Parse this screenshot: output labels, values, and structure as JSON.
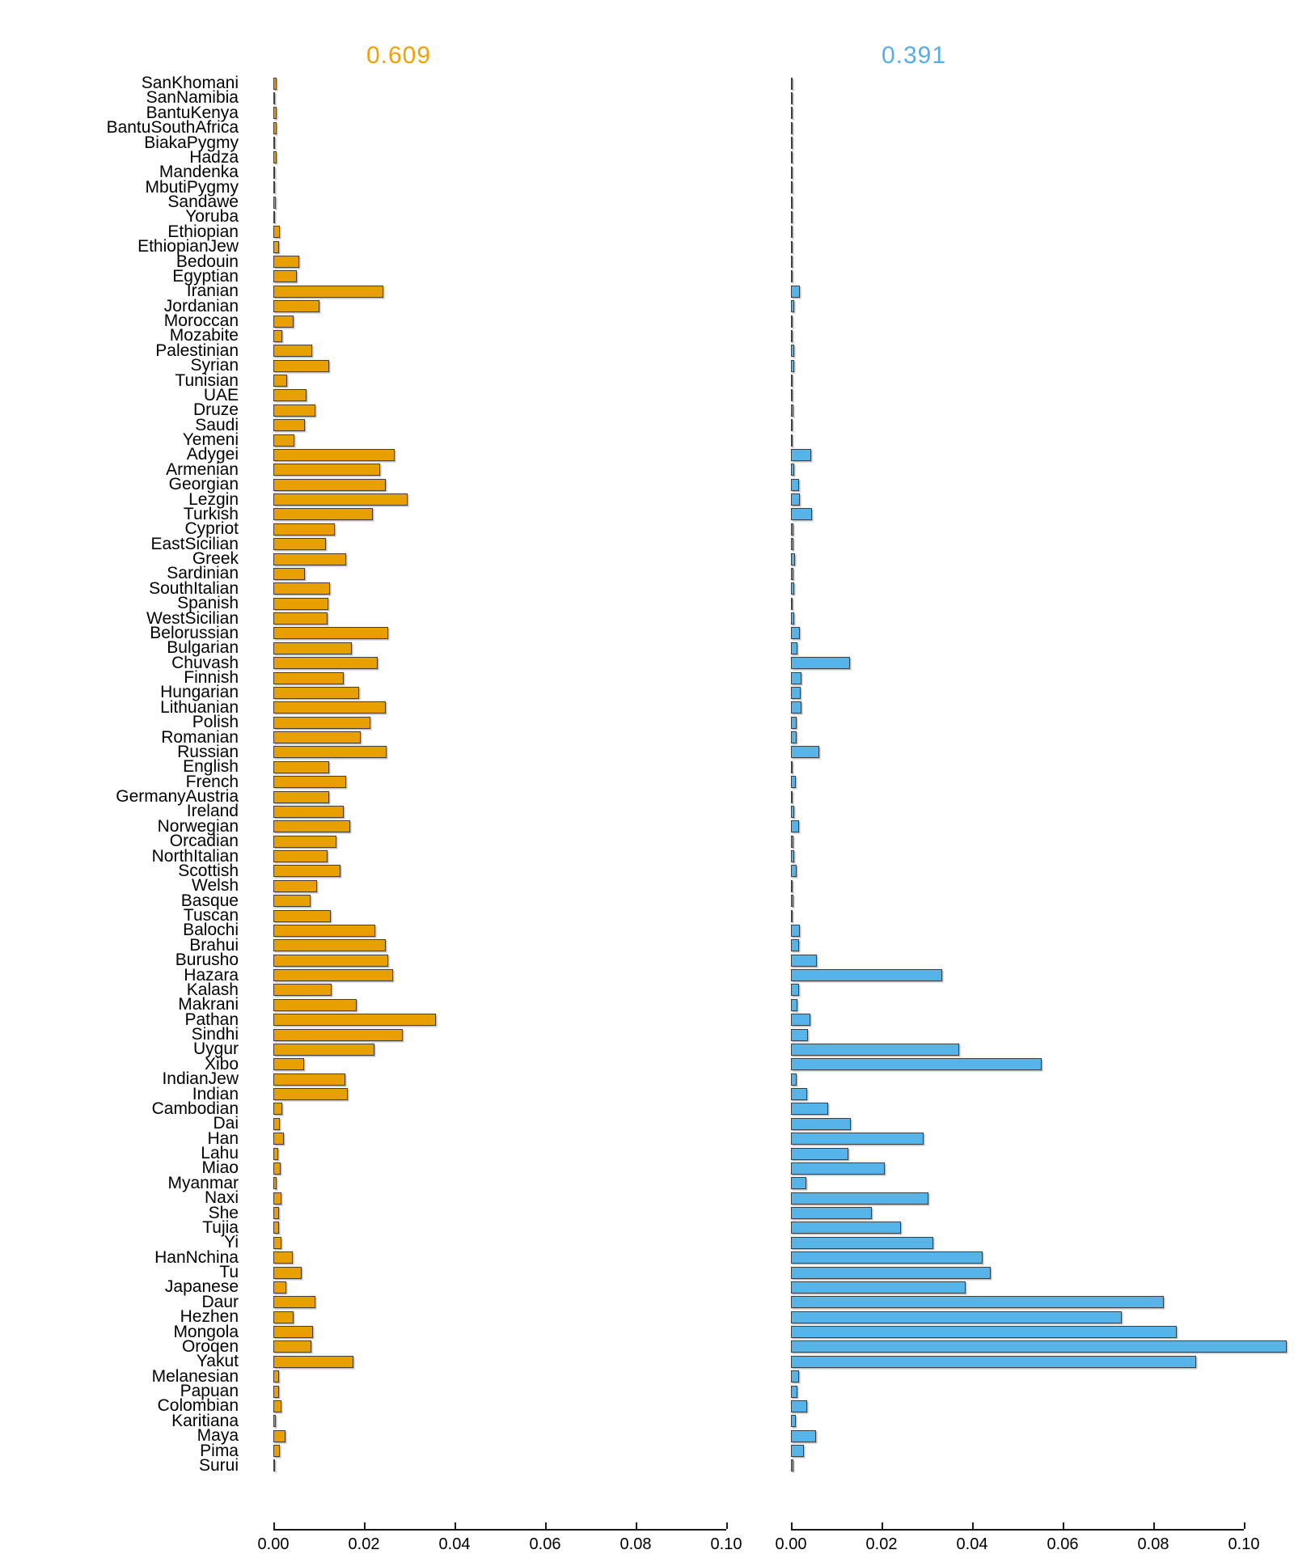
{
  "chart_data": {
    "type": "bar",
    "orientation": "horizontal",
    "grid": false,
    "legend_position": "none",
    "panels": [
      {
        "title": "0.609",
        "bar_color": "#E8A000",
        "title_color": "#F0A202"
      },
      {
        "title": "0.391",
        "bar_color": "#56B4E9",
        "title_color": "#56AEE8"
      }
    ],
    "x_axis": {
      "tick_labels": [
        "0.00",
        "0.02",
        "0.04",
        "0.06",
        "0.08",
        "0.10"
      ],
      "tick_values": [
        0,
        0.02,
        0.04,
        0.06,
        0.08,
        0.1
      ],
      "range": [
        0,
        0.11
      ]
    },
    "categories": [
      "SanKhomani",
      "SanNamibia",
      "BantuKenya",
      "BantuSouthAfrica",
      "BiakaPygmy",
      "Hadza",
      "Mandenka",
      "MbutiPygmy",
      "Sandawe",
      "Yoruba",
      "Ethiopian",
      "EthiopianJew",
      "Bedouin",
      "Egyptian",
      "Iranian",
      "Jordanian",
      "Moroccan",
      "Mozabite",
      "Palestinian",
      "Syrian",
      "Tunisian",
      "UAE",
      "Druze",
      "Saudi",
      "Yemeni",
      "Adygei",
      "Armenian",
      "Georgian",
      "Lezgin",
      "Turkish",
      "Cypriot",
      "EastSicilian",
      "Greek",
      "Sardinian",
      "SouthItalian",
      "Spanish",
      "WestSicilian",
      "Belorussian",
      "Bulgarian",
      "Chuvash",
      "Finnish",
      "Hungarian",
      "Lithuanian",
      "Polish",
      "Romanian",
      "Russian",
      "English",
      "French",
      "GermanyAustria",
      "Ireland",
      "Norwegian",
      "Orcadian",
      "NorthItalian",
      "Scottish",
      "Welsh",
      "Basque",
      "Tuscan",
      "Balochi",
      "Brahui",
      "Burusho",
      "Hazara",
      "Kalash",
      "Makrani",
      "Pathan",
      "Sindhi",
      "Uygur",
      "Xibo",
      "IndianJew",
      "Indian",
      "Cambodian",
      "Dai",
      "Han",
      "Lahu",
      "Miao",
      "Myanmar",
      "Naxi",
      "She",
      "Tujia",
      "Yi",
      "HanNchina",
      "Tu",
      "Japanese",
      "Daur",
      "Hezhen",
      "Mongola",
      "Oroqen",
      "Yakut",
      "Melanesian",
      "Papuan",
      "Colombian",
      "Karitiana",
      "Maya",
      "Pima",
      "Surui"
    ],
    "series": [
      {
        "name": "0.609",
        "values": [
          0.0007,
          0.0002,
          0.0007,
          0.0007,
          0.0002,
          0.0007,
          0.0002,
          0.0002,
          0.0005,
          0.0002,
          0.0014,
          0.0013,
          0.0058,
          0.0052,
          0.0242,
          0.0101,
          0.0045,
          0.002,
          0.0085,
          0.0124,
          0.003,
          0.0073,
          0.0092,
          0.0069,
          0.0046,
          0.0268,
          0.0236,
          0.0248,
          0.0297,
          0.022,
          0.0135,
          0.0116,
          0.016,
          0.007,
          0.0125,
          0.0122,
          0.012,
          0.0253,
          0.0174,
          0.023,
          0.0155,
          0.019,
          0.0248,
          0.0215,
          0.0192,
          0.025,
          0.0124,
          0.0161,
          0.0123,
          0.0156,
          0.0169,
          0.0139,
          0.012,
          0.0149,
          0.0096,
          0.0082,
          0.0127,
          0.0225,
          0.0248,
          0.0253,
          0.0264,
          0.0129,
          0.0184,
          0.0359,
          0.0286,
          0.0224,
          0.0068,
          0.0159,
          0.0164,
          0.002,
          0.0015,
          0.0024,
          0.0011,
          0.0016,
          0.0008,
          0.0018,
          0.0012,
          0.0013,
          0.0017,
          0.0043,
          0.0063,
          0.0028,
          0.0093,
          0.0044,
          0.0087,
          0.0084,
          0.0177,
          0.0013,
          0.0013,
          0.0018,
          0.0006,
          0.0026,
          0.0015,
          0.0002
        ]
      },
      {
        "name": "0.391",
        "values": [
          0.0002,
          0.0001,
          0.0003,
          0.0002,
          0.0001,
          0.0001,
          0.0001,
          0.0001,
          0.0002,
          0.0001,
          0.0002,
          0.0002,
          0.0004,
          0.0004,
          0.002,
          0.0007,
          0.0002,
          0.0001,
          0.0007,
          0.0007,
          0.0002,
          0.0002,
          0.0006,
          0.0004,
          0.0002,
          0.0045,
          0.0007,
          0.0017,
          0.0019,
          0.0047,
          0.0005,
          0.0005,
          0.0009,
          0.0005,
          0.0008,
          0.0004,
          0.0008,
          0.0019,
          0.0014,
          0.013,
          0.0024,
          0.0022,
          0.0023,
          0.0013,
          0.0012,
          0.0063,
          0.0002,
          0.001,
          0.0002,
          0.0007,
          0.0017,
          0.0005,
          0.0008,
          0.0013,
          0.0004,
          0.0005,
          0.0004,
          0.002,
          0.0017,
          0.0058,
          0.0334,
          0.0017,
          0.0015,
          0.0043,
          0.0038,
          0.0371,
          0.0553,
          0.0012,
          0.0036,
          0.0083,
          0.0133,
          0.0293,
          0.0126,
          0.0207,
          0.0034,
          0.0303,
          0.0178,
          0.0242,
          0.0314,
          0.0424,
          0.0441,
          0.0386,
          0.0823,
          0.073,
          0.0852,
          0.1095,
          0.0895,
          0.0018,
          0.0015,
          0.0036,
          0.0011,
          0.0056,
          0.0028,
          0.0005
        ]
      }
    ]
  }
}
